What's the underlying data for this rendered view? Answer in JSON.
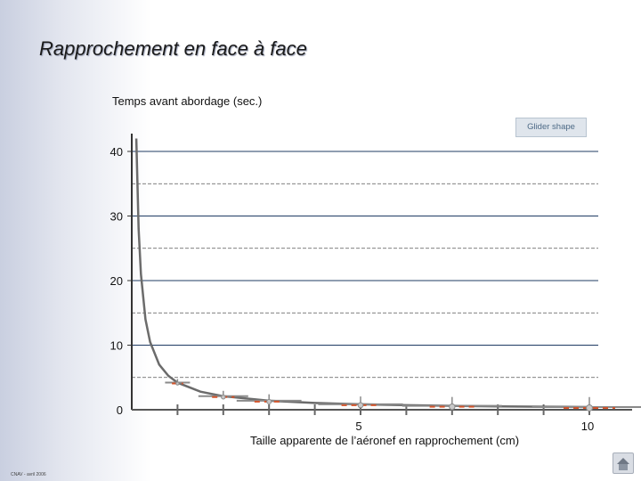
{
  "slide": {
    "title": "Rapprochement en face à face",
    "footer": "CNAV - avril 2006"
  },
  "legend": {
    "label": "Glider shape"
  },
  "colors": {
    "curve": "#6b6b6b",
    "grid_solid": "#1f3b63",
    "grid_dashed": "#555555",
    "glider": "#8a8a8a",
    "glider_accent": "#d2532a"
  },
  "icons": [
    "glider-icon",
    "nav-home-icon"
  ],
  "chart_data": {
    "type": "line",
    "title": "",
    "ylabel": "Temps avant abordage (sec.)",
    "xlabel": "Taille apparente de l’aéronef en rapprochement (cm)",
    "xlim": [
      0,
      10
    ],
    "ylim": [
      0,
      40
    ],
    "y_ticks": [
      {
        "value": 0,
        "label": "0"
      },
      {
        "value": 10,
        "label": "10"
      },
      {
        "value": 20,
        "label": "20"
      },
      {
        "value": 30,
        "label": "30"
      },
      {
        "value": 40,
        "label": "40"
      }
    ],
    "x_tick_labels": [
      {
        "value": 5,
        "label": "5"
      },
      {
        "value": 10,
        "label": "10"
      }
    ],
    "x_minor_ticks": [
      1,
      2,
      3,
      4,
      5,
      6,
      7,
      8,
      9,
      10
    ],
    "grid": true,
    "series": [
      {
        "x": [
          0.1,
          0.15,
          0.2,
          0.3,
          0.4,
          0.6,
          0.8,
          1.0,
          1.5,
          2.0,
          3.0,
          4.0,
          5.0,
          6.0,
          7.0,
          8.0,
          9.0,
          10.0
        ],
        "y": [
          42,
          28,
          21,
          14,
          10.5,
          7,
          5.25,
          4.2,
          2.8,
          2.1,
          1.4,
          1.05,
          0.84,
          0.7,
          0.6,
          0.53,
          0.47,
          0.42
        ]
      }
    ],
    "glider_markers": [
      {
        "x": 1.0,
        "y": 4.2,
        "size": 1.0
      },
      {
        "x": 2.0,
        "y": 2.1,
        "size": 2.0
      },
      {
        "x": 3.0,
        "y": 1.4,
        "size": 2.6
      },
      {
        "x": 5.0,
        "y": 0.84,
        "size": 3.4
      },
      {
        "x": 7.0,
        "y": 0.6,
        "size": 4.0
      },
      {
        "x": 10.0,
        "y": 0.42,
        "size": 4.6
      }
    ]
  }
}
